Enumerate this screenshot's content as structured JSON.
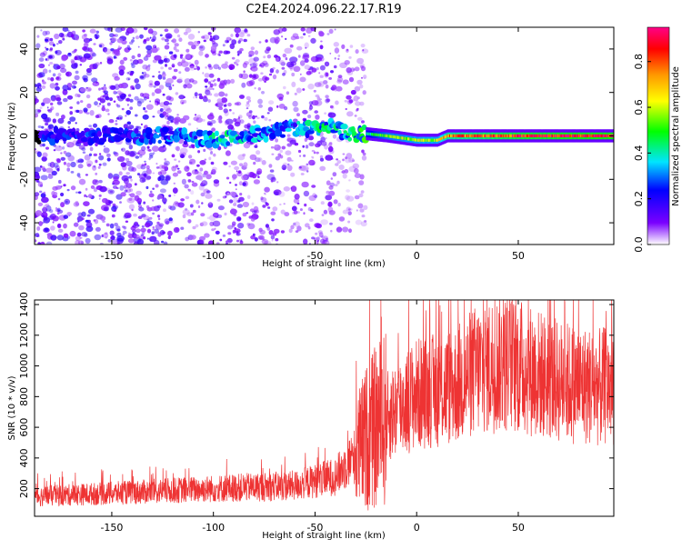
{
  "figure_title": "C2E4.2024.096.22.17.R19",
  "colors": {
    "snr_line": "#ee3333",
    "colormap": [
      "#ffffff",
      "#7a00ff",
      "#0000ff",
      "#00e5ff",
      "#00ff00",
      "#ffff00",
      "#ff9900",
      "#ff0000",
      "#ff0088"
    ]
  },
  "chart_data": [
    {
      "type": "heatmap",
      "title": "",
      "xlabel": "Height of straight line (km)",
      "ylabel": "Frequency (Hz)",
      "xlim": [
        -188,
        97
      ],
      "ylim": [
        -50,
        50
      ],
      "x_ticks": [
        -150,
        -100,
        -50,
        0,
        50
      ],
      "x_tick_labels": [
        "-150",
        "-100",
        "-50",
        "0",
        "50"
      ],
      "y_ticks": [
        -40,
        -20,
        0,
        20,
        40
      ],
      "y_tick_labels": [
        "-40",
        "-20",
        "0",
        "20",
        "40"
      ],
      "colorbar": {
        "label": "Normalized spectral amplitude",
        "range": [
          0,
          0.95
        ],
        "ticks": [
          0,
          0.2,
          0.4,
          0.6,
          0.8
        ],
        "tick_labels": [
          "0.0",
          "0.2",
          "0.4",
          "0.6",
          "0.8"
        ]
      },
      "grid": false,
      "regions": [
        {
          "x_range": [
            -188,
            -120
          ],
          "freq_spread_hz": 50,
          "amplitude": [
            0.05,
            0.2
          ]
        },
        {
          "x_range": [
            -120,
            -40
          ],
          "freq_spread_hz": 50,
          "amplitude": [
            0.03,
            0.15
          ]
        },
        {
          "x_range": [
            -40,
            -25
          ],
          "freq_spread_hz": 45,
          "amplitude": [
            0.03,
            0.1
          ]
        },
        {
          "x_range": [
            -25,
            97
          ],
          "freq_spread_hz": 3,
          "amplitude": [
            0.0,
            0.0
          ]
        }
      ],
      "ridge": [
        {
          "x": -185,
          "freq": 0,
          "amplitude": 0.2
        },
        {
          "x": -115,
          "freq": 0,
          "amplitude": 0.25
        },
        {
          "x": -100,
          "freq": -2,
          "amplitude": 0.35
        },
        {
          "x": -85,
          "freq": 0,
          "amplitude": 0.3
        },
        {
          "x": -70,
          "freq": 2,
          "amplitude": 0.25
        },
        {
          "x": -60,
          "freq": 4,
          "amplitude": 0.3
        },
        {
          "x": -50,
          "freq": 3,
          "amplitude": 0.35
        },
        {
          "x": -40,
          "freq": 4,
          "amplitude": 0.35
        },
        {
          "x": -35,
          "freq": 1,
          "amplitude": 0.35
        },
        {
          "x": -25,
          "freq": 1,
          "amplitude": 0.4
        },
        {
          "x": -15,
          "freq": 0,
          "amplitude": 0.55
        },
        {
          "x": 0,
          "freq": -2,
          "amplitude": 0.6
        },
        {
          "x": 10,
          "freq": -2,
          "amplitude": 0.6
        },
        {
          "x": 15,
          "freq": 0,
          "amplitude": 0.75
        },
        {
          "x": 50,
          "freq": 0,
          "amplitude": 0.85
        },
        {
          "x": 97,
          "freq": 0,
          "amplitude": 0.9
        }
      ]
    },
    {
      "type": "line",
      "title": "",
      "xlabel": "Height of straight line (km)",
      "ylabel": "SNR (10 * v/v)",
      "xlim": [
        -188,
        97
      ],
      "ylim": [
        20,
        1430
      ],
      "x_ticks": [
        -150,
        -100,
        -50,
        0,
        50
      ],
      "x_tick_labels": [
        "-150",
        "-100",
        "-50",
        "0",
        "50"
      ],
      "y_ticks": [
        200,
        400,
        600,
        800,
        1000,
        1200,
        1400
      ],
      "y_tick_labels": [
        "200",
        "400",
        "600",
        "800",
        "1000",
        "1200",
        "1400"
      ],
      "grid": false,
      "series": [
        {
          "x": [
            -188,
            -150,
            -100,
            -60,
            -40,
            -30,
            -25,
            -20,
            -10,
            0,
            10,
            20,
            30,
            40,
            50,
            60,
            70,
            80,
            90,
            97
          ],
          "values": [
            150,
            170,
            200,
            220,
            280,
            420,
            530,
            600,
            720,
            820,
            840,
            880,
            980,
            1020,
            1000,
            950,
            900,
            880,
            860,
            880
          ]
        }
      ]
    }
  ]
}
